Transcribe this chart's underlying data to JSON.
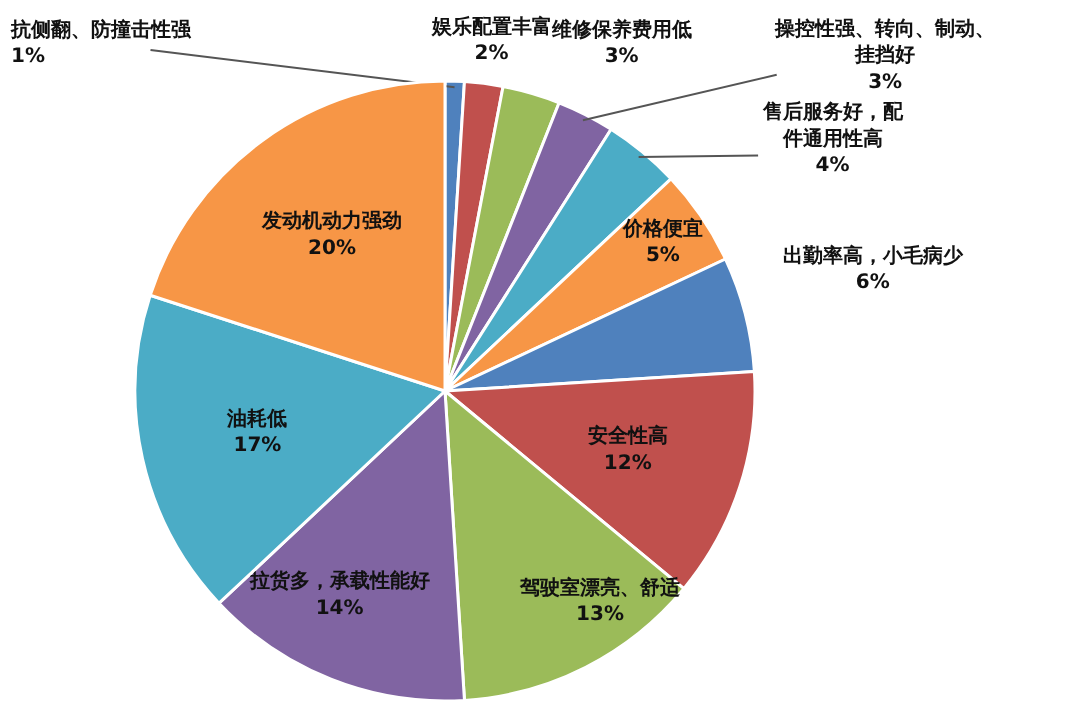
{
  "chart_data": {
    "type": "pie",
    "categories": [
      "抗侧翻、防撞击性强",
      "娱乐配置丰富",
      "维修保养费用低",
      "操控性强、转向、制动、挂挡好",
      "售后服务好，配件通用性高",
      "价格便宜",
      "出勤率高，小毛病少",
      "安全性高",
      "驾驶室漂亮、舒适",
      "拉货多，承载性能好",
      "油耗低",
      "发动机动力强劲"
    ],
    "values": [
      1,
      2,
      3,
      3,
      4,
      5,
      6,
      12,
      13,
      14,
      17,
      20
    ],
    "value_labels": [
      "1%",
      "2%",
      "3%",
      "3%",
      "4%",
      "5%",
      "6%",
      "12%",
      "13%",
      "14%",
      "17%",
      "20%"
    ],
    "colors": [
      "#4f81bd",
      "#c0504d",
      "#9bbb59",
      "#8064a2",
      "#4bacc6",
      "#f79646",
      "#4f81bd",
      "#c0504d",
      "#9bbb59",
      "#8064a2",
      "#4bacc6",
      "#f79646"
    ]
  }
}
